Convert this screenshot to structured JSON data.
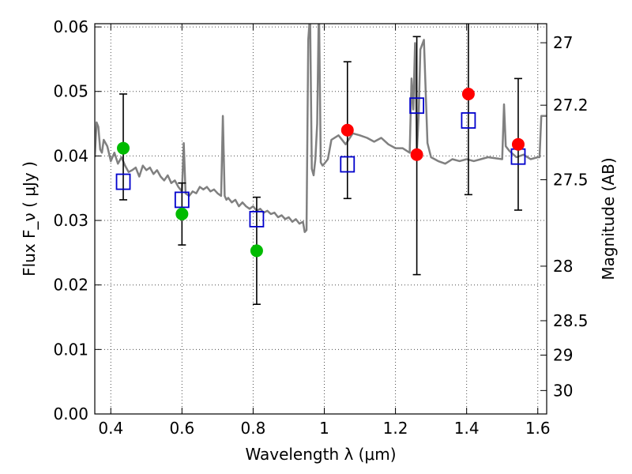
{
  "chart_data": {
    "type": "scatter",
    "xlabel": "Wavelength  λ (μm)",
    "ylabel": "Flux  F_ν ( μJy )",
    "y2label": "Magnitude (AB)",
    "xlim": [
      0.355,
      1.625
    ],
    "ylim": [
      0.0,
      0.0605
    ],
    "x_ticks": [
      0.4,
      0.6,
      0.8,
      1.0,
      1.2,
      1.4,
      1.6
    ],
    "x_tick_labels": [
      "0.4",
      "0.6",
      "0.8",
      "1",
      "1.2",
      "1.4",
      "1.6"
    ],
    "y_ticks": [
      0.0,
      0.01,
      0.02,
      0.03,
      0.04,
      0.05,
      0.06
    ],
    "y_tick_labels": [
      "0.00",
      "0.01",
      "0.02",
      "0.03",
      "0.04",
      "0.05",
      "0.06"
    ],
    "y2_ticks": [
      27,
      27.2,
      27.5,
      28,
      28.5,
      29,
      30
    ],
    "y2_tick_labels": [
      "27",
      "27.2",
      "27.5",
      "28",
      "28.5",
      "29",
      "30"
    ],
    "grid": true,
    "colors": {
      "spectrum": "#808080",
      "green": "#00bb00",
      "red": "#ff0000",
      "model": "#0000cc",
      "errorbar": "#000000"
    },
    "series": [
      {
        "kind": "spectrum",
        "x": [
          0.355,
          0.36,
          0.365,
          0.37,
          0.375,
          0.38,
          0.39,
          0.4,
          0.41,
          0.42,
          0.43,
          0.44,
          0.45,
          0.46,
          0.47,
          0.48,
          0.49,
          0.5,
          0.51,
          0.52,
          0.53,
          0.54,
          0.55,
          0.56,
          0.57,
          0.58,
          0.59,
          0.6,
          0.605,
          0.61,
          0.62,
          0.63,
          0.64,
          0.65,
          0.66,
          0.67,
          0.68,
          0.69,
          0.7,
          0.71,
          0.715,
          0.72,
          0.725,
          0.73,
          0.74,
          0.75,
          0.76,
          0.77,
          0.78,
          0.79,
          0.8,
          0.81,
          0.82,
          0.83,
          0.84,
          0.85,
          0.86,
          0.87,
          0.88,
          0.89,
          0.9,
          0.91,
          0.92,
          0.93,
          0.94,
          0.945,
          0.95,
          0.955,
          0.96,
          0.965,
          0.97,
          0.975,
          0.98,
          0.985,
          0.99,
          0.995,
          1.0,
          1.01,
          1.02,
          1.04,
          1.06,
          1.08,
          1.1,
          1.12,
          1.14,
          1.16,
          1.18,
          1.2,
          1.22,
          1.24,
          1.245,
          1.25,
          1.255,
          1.26,
          1.265,
          1.27,
          1.28,
          1.29,
          1.3,
          1.32,
          1.34,
          1.36,
          1.38,
          1.4,
          1.42,
          1.44,
          1.46,
          1.5,
          1.505,
          1.51,
          1.52,
          1.54,
          1.56,
          1.58,
          1.6,
          1.605,
          1.61,
          1.625
        ],
        "y": [
          0.0398,
          0.0452,
          0.0445,
          0.041,
          0.0405,
          0.0425,
          0.0415,
          0.0392,
          0.0405,
          0.0388,
          0.0398,
          0.0385,
          0.0375,
          0.0378,
          0.0382,
          0.0368,
          0.0385,
          0.0378,
          0.0382,
          0.0372,
          0.0378,
          0.0368,
          0.0362,
          0.037,
          0.0358,
          0.0362,
          0.0352,
          0.0345,
          0.042,
          0.0342,
          0.0338,
          0.0345,
          0.0342,
          0.0352,
          0.0348,
          0.0352,
          0.0345,
          0.0348,
          0.0342,
          0.0338,
          0.0462,
          0.0338,
          0.0332,
          0.0335,
          0.0328,
          0.0332,
          0.0322,
          0.0328,
          0.0322,
          0.0318,
          0.0322,
          0.0315,
          0.0318,
          0.0312,
          0.0315,
          0.031,
          0.0312,
          0.0305,
          0.0308,
          0.0302,
          0.0305,
          0.0298,
          0.0302,
          0.0295,
          0.0298,
          0.0282,
          0.0285,
          0.058,
          0.062,
          0.038,
          0.037,
          0.0395,
          0.045,
          0.064,
          0.039,
          0.0385,
          0.0388,
          0.0395,
          0.0425,
          0.0432,
          0.0418,
          0.0435,
          0.0432,
          0.0428,
          0.0422,
          0.0428,
          0.0418,
          0.0412,
          0.0412,
          0.0405,
          0.052,
          0.0472,
          0.0575,
          0.0405,
          0.046,
          0.0565,
          0.058,
          0.042,
          0.0398,
          0.0392,
          0.0388,
          0.0395,
          0.0392,
          0.0395,
          0.0392,
          0.0395,
          0.0398,
          0.0395,
          0.048,
          0.0415,
          0.0408,
          0.0398,
          0.0402,
          0.0395,
          0.0398,
          0.0398,
          0.0462,
          0.0462
        ]
      },
      {
        "kind": "model",
        "marker": "open-square",
        "x": [
          0.435,
          0.6,
          0.81,
          1.065,
          1.26,
          1.405,
          1.545
        ],
        "y": [
          0.036,
          0.0332,
          0.0302,
          0.0387,
          0.0478,
          0.0455,
          0.0399
        ]
      },
      {
        "kind": "observed-green",
        "marker": "filled-circle",
        "x": [
          0.435,
          0.6,
          0.81
        ],
        "y": [
          0.0412,
          0.031,
          0.0253
        ],
        "err_low": [
          0.0332,
          0.0262,
          0.017
        ],
        "err_high": [
          0.0496,
          0.0358,
          0.0336
        ]
      },
      {
        "kind": "observed-red",
        "marker": "filled-circle",
        "x": [
          1.065,
          1.26,
          1.405,
          1.545
        ],
        "y": [
          0.044,
          0.0402,
          0.0496,
          0.0418
        ],
        "err_low": [
          0.0334,
          0.0216,
          0.034,
          0.0316
        ],
        "err_high": [
          0.0546,
          0.0585,
          0.0607,
          0.052
        ]
      }
    ]
  }
}
